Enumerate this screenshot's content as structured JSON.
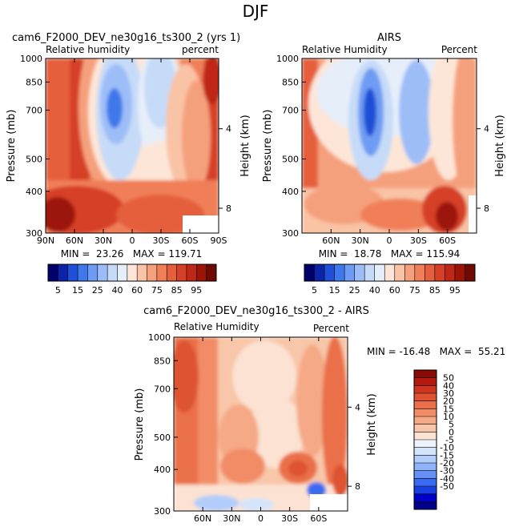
{
  "figure_title": "DJF",
  "colors": {
    "rh_scale": [
      "#00006b",
      "#0a23a8",
      "#1f4fd6",
      "#3f78ea",
      "#6e9bf3",
      "#9dbdf7",
      "#c6dbf8",
      "#e6eefa",
      "#fde6d8",
      "#f9c3a6",
      "#f5a07c",
      "#f07f58",
      "#e55f3c",
      "#d64028",
      "#bf2717",
      "#9c1408",
      "#6e0a02"
    ],
    "diff_scale": [
      "#00008c",
      "#0000c8",
      "#1a3fe0",
      "#3a6af0",
      "#6690f5",
      "#8fb2f8",
      "#b3cdfa",
      "#d4e4fb",
      "#ecf3fd",
      "#fbe2d2",
      "#f8c6a8",
      "#f5a986",
      "#f28c66",
      "#ea6f4a",
      "#de5232",
      "#cd3520",
      "#b21a0e",
      "#8a0a04"
    ]
  },
  "chart_data": [
    {
      "type": "heatmap",
      "panel": "model",
      "title": "cam6_F2000_DEV_ne30g16_ts300_2 (yrs 1)",
      "left_label": "Relative humidity",
      "right_label": "percent",
      "ylabel": "Pressure (mb)",
      "y2label": "Height (km)",
      "yticks": [
        "300",
        "400",
        "500",
        "700",
        "850",
        "1000"
      ],
      "y2ticks": [
        "8",
        "4"
      ],
      "xticks": [
        "90N",
        "60N",
        "30N",
        "0",
        "30S",
        "60S",
        "90S"
      ],
      "stats": "MIN =  23.26   MAX = 119.71",
      "xlim": [
        90,
        -90
      ],
      "ylim": [
        1000,
        300
      ]
    },
    {
      "type": "heatmap",
      "panel": "obs",
      "title": "AIRS",
      "left_label": "Relative Humidity",
      "right_label": "Percent",
      "ylabel": "Pressure (mb)",
      "y2label": "Height (km)",
      "yticks": [
        "300",
        "400",
        "500",
        "700",
        "850",
        "1000"
      ],
      "y2ticks": [
        "8",
        "4"
      ],
      "xticks": [
        "60N",
        "30N",
        "0",
        "30S",
        "60S"
      ],
      "stats": "MIN =  18.78   MAX = 115.94",
      "xlim": [
        90,
        -90
      ],
      "ylim": [
        1000,
        300
      ]
    },
    {
      "type": "heatmap",
      "panel": "difference",
      "title": "cam6_F2000_DEV_ne30g16_ts300_2 - AIRS",
      "left_label": "Relative Humidity",
      "right_label": "Percent",
      "ylabel": "Pressure (mb)",
      "y2label": "Height (km)",
      "yticks": [
        "300",
        "400",
        "500",
        "700",
        "850",
        "1000"
      ],
      "y2ticks": [
        "8",
        "4"
      ],
      "xticks": [
        "60N",
        "30N",
        "0",
        "30S",
        "60S"
      ],
      "stats": "MIN = -16.48   MAX =  55.21",
      "xlim": [
        90,
        -90
      ],
      "ylim": [
        1000,
        300
      ]
    }
  ],
  "colorbar_rh": {
    "labels": [
      "5",
      "15",
      "25",
      "40",
      "60",
      "75",
      "85",
      "95"
    ]
  },
  "colorbar_diff": {
    "labels": [
      "50",
      "40",
      "30",
      "20",
      "15",
      "10",
      "5",
      "0",
      "-5",
      "-10",
      "-15",
      "-20",
      "-30",
      "-40",
      "-50"
    ]
  }
}
